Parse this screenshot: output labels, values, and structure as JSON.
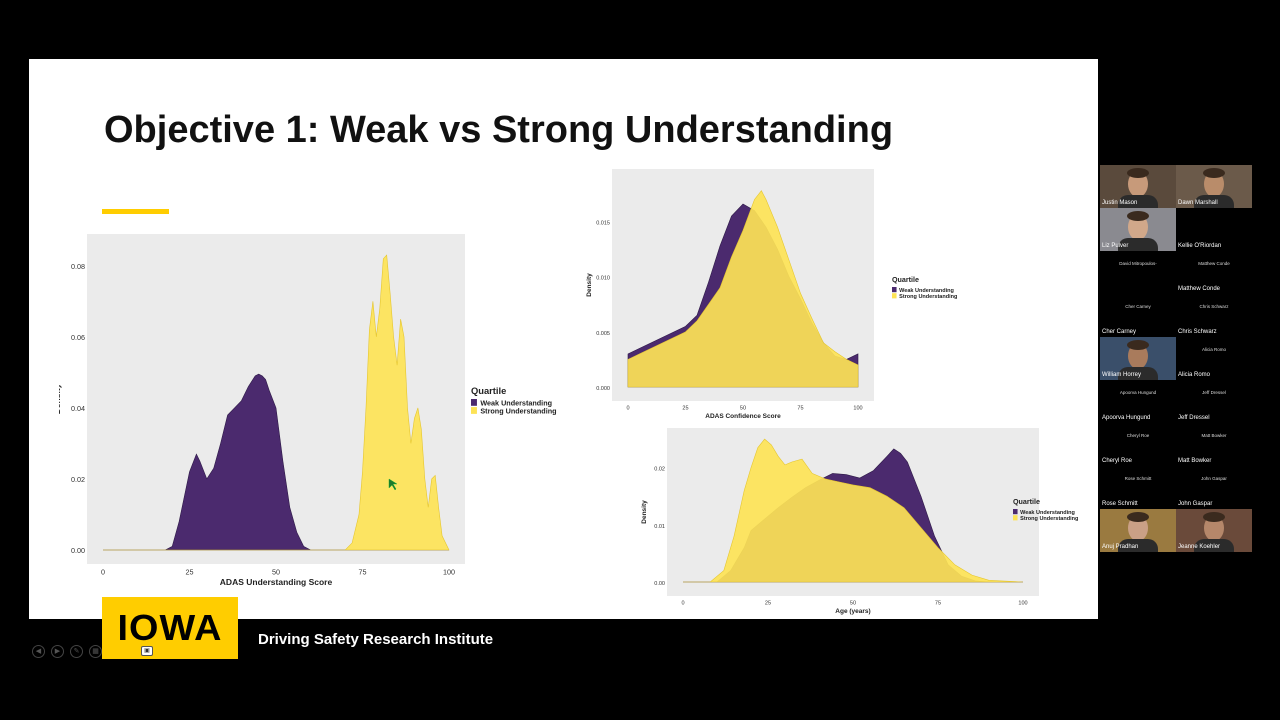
{
  "slide": {
    "title": "Objective 1: Weak vs Strong Understanding",
    "footer_logo": "IOWA",
    "footer_institute": "Driving Safety Research Institute"
  },
  "colors": {
    "weak": "#4B2A6E",
    "strong": "#FDE356",
    "strong_dark": "#E5C62E",
    "accent": "#FFCD00",
    "panel": "#EBEBEB"
  },
  "chart_data": [
    {
      "type": "area",
      "title": "",
      "xlabel": "ADAS Understanding Score",
      "ylabel": "Density",
      "xlim": [
        0,
        100
      ],
      "ylim": [
        0,
        0.085
      ],
      "xticks": [
        "0",
        "25",
        "50",
        "75",
        "100"
      ],
      "yticks": [
        "0.00",
        "0.02",
        "0.04",
        "0.06",
        "0.08"
      ],
      "legend_title": "Quartile",
      "series": [
        {
          "name": "Weak Understanding",
          "x": [
            0,
            18,
            20,
            22,
            25,
            27,
            28,
            30,
            32,
            34,
            36,
            38,
            40,
            42,
            44,
            45,
            46,
            47,
            48,
            50,
            52,
            54,
            56,
            58,
            60,
            62,
            100
          ],
          "y": [
            0,
            0,
            0.001,
            0.008,
            0.022,
            0.027,
            0.025,
            0.02,
            0.023,
            0.03,
            0.038,
            0.04,
            0.042,
            0.046,
            0.049,
            0.0495,
            0.049,
            0.048,
            0.045,
            0.04,
            0.025,
            0.012,
            0.005,
            0.001,
            0,
            0,
            0
          ]
        },
        {
          "name": "Strong Understanding",
          "x": [
            0,
            70,
            72,
            74,
            75,
            76,
            77,
            78,
            79,
            80,
            81,
            82,
            83,
            84,
            85,
            86,
            87,
            88,
            89,
            90,
            91,
            92,
            93,
            94,
            95,
            96,
            97,
            98,
            100
          ],
          "y": [
            0,
            0,
            0.002,
            0.01,
            0.022,
            0.04,
            0.062,
            0.07,
            0.06,
            0.068,
            0.082,
            0.083,
            0.072,
            0.06,
            0.052,
            0.065,
            0.06,
            0.04,
            0.03,
            0.037,
            0.04,
            0.034,
            0.02,
            0.012,
            0.02,
            0.021,
            0.012,
            0.004,
            0
          ]
        }
      ]
    },
    {
      "type": "area",
      "title": "",
      "xlabel": "ADAS Confidence Score",
      "ylabel": "Density",
      "xlim": [
        0,
        100
      ],
      "ylim": [
        0,
        0.0185
      ],
      "xticks": [
        "0",
        "25",
        "50",
        "75",
        "100"
      ],
      "yticks": [
        "0.000",
        "0.005",
        "0.010",
        "0.015"
      ],
      "legend_title": "Quartile",
      "series": [
        {
          "name": "Weak Understanding",
          "x": [
            0,
            5,
            10,
            15,
            20,
            25,
            30,
            35,
            40,
            45,
            50,
            55,
            60,
            65,
            70,
            75,
            80,
            85,
            90,
            95,
            100
          ],
          "y": [
            0.003,
            0.0035,
            0.004,
            0.0045,
            0.005,
            0.0055,
            0.0065,
            0.0095,
            0.0128,
            0.0155,
            0.0166,
            0.016,
            0.0145,
            0.0125,
            0.01,
            0.008,
            0.0058,
            0.004,
            0.0028,
            0.0025,
            0.003
          ]
        },
        {
          "name": "Strong Understanding",
          "x": [
            0,
            5,
            10,
            15,
            20,
            25,
            30,
            35,
            40,
            45,
            50,
            55,
            58,
            60,
            65,
            70,
            75,
            80,
            85,
            90,
            95,
            100
          ],
          "y": [
            0.0025,
            0.003,
            0.0035,
            0.004,
            0.0045,
            0.005,
            0.006,
            0.0075,
            0.009,
            0.0118,
            0.0142,
            0.017,
            0.0178,
            0.017,
            0.0145,
            0.0115,
            0.0085,
            0.0062,
            0.004,
            0.0032,
            0.0025,
            0.002
          ]
        }
      ]
    },
    {
      "type": "area",
      "title": "",
      "xlabel": "Age (years)",
      "ylabel": "Density",
      "xlim": [
        0,
        100
      ],
      "ylim": [
        0,
        0.0245
      ],
      "xticks": [
        "0",
        "25",
        "50",
        "75",
        "100"
      ],
      "yticks": [
        "0.00",
        "0.01",
        "0.02"
      ],
      "legend_title": "Quartile",
      "series": [
        {
          "name": "Weak Understanding",
          "x": [
            0,
            10,
            14,
            18,
            20,
            24,
            28,
            32,
            36,
            40,
            44,
            48,
            52,
            56,
            60,
            62,
            64,
            66,
            70,
            74,
            78,
            82,
            86,
            90,
            100
          ],
          "y": [
            0,
            0,
            0.002,
            0.006,
            0.009,
            0.011,
            0.013,
            0.0148,
            0.0165,
            0.0178,
            0.019,
            0.0188,
            0.0182,
            0.0195,
            0.022,
            0.0233,
            0.0225,
            0.021,
            0.015,
            0.008,
            0.003,
            0.001,
            0.0002,
            0,
            0
          ]
        },
        {
          "name": "Strong Understanding",
          "x": [
            0,
            8,
            12,
            15,
            18,
            20,
            22,
            24,
            26,
            28,
            30,
            32,
            35,
            38,
            42,
            46,
            50,
            55,
            60,
            65,
            70,
            75,
            80,
            85,
            90,
            100
          ],
          "y": [
            0,
            0,
            0.002,
            0.008,
            0.016,
            0.02,
            0.0235,
            0.025,
            0.024,
            0.022,
            0.0205,
            0.021,
            0.0215,
            0.019,
            0.018,
            0.0175,
            0.017,
            0.0165,
            0.015,
            0.013,
            0.0095,
            0.006,
            0.003,
            0.0012,
            0.0003,
            0
          ]
        }
      ]
    }
  ],
  "participants": [
    {
      "name": "Justin Mason",
      "video": true
    },
    {
      "name": "Dawn Marshall",
      "video": true
    },
    {
      "name": "Liz Pulver",
      "video": true
    },
    {
      "name": "Kellie O'Riordan",
      "video": false,
      "banner": ""
    },
    {
      "name": "",
      "video": false,
      "banner": "David Mitropoulos-"
    },
    {
      "name": "Matthew Conde",
      "video": false,
      "banner": "Matthew Conde"
    },
    {
      "name": "Cher Carney",
      "video": false,
      "banner": "Cher Carney"
    },
    {
      "name": "Chris Schwarz",
      "video": false,
      "banner": "Chris Schwarz"
    },
    {
      "name": "William Horrey",
      "video": true
    },
    {
      "name": "Alicia Romo",
      "video": false,
      "banner": "Alicia Romo"
    },
    {
      "name": "Apoorva Hungund",
      "video": false,
      "banner": "Apoorva Hungund"
    },
    {
      "name": "Jeff Dressel",
      "video": false,
      "banner": "Jeff Dressel"
    },
    {
      "name": "Cheryl Roe",
      "video": false,
      "banner": "Cheryl Roe"
    },
    {
      "name": "Matt Bowker",
      "video": false,
      "banner": "Matt Bowker"
    },
    {
      "name": "Rose Schmitt",
      "video": false,
      "banner": "Rose Schmitt"
    },
    {
      "name": "John Gaspar",
      "video": false,
      "banner": "John Gaspar"
    },
    {
      "name": "Anuj Pradhan",
      "video": true
    },
    {
      "name": "Jeanne Koehler",
      "video": true
    }
  ],
  "controls": [
    "prev",
    "next",
    "pen",
    "grid"
  ]
}
